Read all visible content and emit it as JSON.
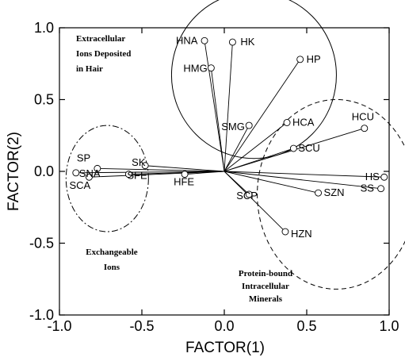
{
  "chart_data": {
    "type": "scatter",
    "xlabel": "FACTOR(1)",
    "ylabel": "FACTOR(2)",
    "xlim": [
      -1.0,
      1.0
    ],
    "ylim": [
      -1.0,
      1.0
    ],
    "xticks": [
      "-1.0",
      "-0.5",
      "0.0",
      "0.5",
      "1.0"
    ],
    "yticks": [
      "-1.0",
      "-0.5",
      "0.0",
      "0.5",
      "1.0"
    ],
    "grid": false,
    "origin": [
      0.0,
      0.0
    ],
    "points": [
      {
        "label": "HNA",
        "x": -0.12,
        "y": 0.91
      },
      {
        "label": "HK",
        "x": 0.05,
        "y": 0.9
      },
      {
        "label": "HMG",
        "x": -0.08,
        "y": 0.72
      },
      {
        "label": "HP",
        "x": 0.46,
        "y": 0.78
      },
      {
        "label": "HCA",
        "x": 0.38,
        "y": 0.34
      },
      {
        "label": "SMG",
        "x": 0.15,
        "y": 0.32
      },
      {
        "label": "SCU",
        "x": 0.42,
        "y": 0.16
      },
      {
        "label": "HCU",
        "x": 0.85,
        "y": 0.3
      },
      {
        "label": "HS",
        "x": 0.97,
        "y": -0.04
      },
      {
        "label": "SS",
        "x": 0.95,
        "y": -0.12
      },
      {
        "label": "SZN",
        "x": 0.57,
        "y": -0.15
      },
      {
        "label": "SCP",
        "x": 0.15,
        "y": -0.16
      },
      {
        "label": "HZN",
        "x": 0.37,
        "y": -0.42
      },
      {
        "label": "HFE",
        "x": -0.24,
        "y": -0.02
      },
      {
        "label": "SK",
        "x": -0.48,
        "y": 0.04
      },
      {
        "label": "SFE",
        "x": -0.58,
        "y": -0.02
      },
      {
        "label": "SP",
        "x": -0.77,
        "y": 0.02
      },
      {
        "label": "SNA",
        "x": -0.9,
        "y": -0.01
      },
      {
        "label": "SCA",
        "x": -0.82,
        "y": -0.04
      }
    ],
    "groups": [
      {
        "name": "Extracellular Ions Deposited in Hair",
        "lines": [
          "Extracellular",
          "Ions Deposited",
          "in Hair"
        ],
        "style": "solid",
        "cx": 0.18,
        "cy": 0.67,
        "rx": 0.5,
        "ry": 0.58
      },
      {
        "name": "Exchangeable Ions",
        "lines": [
          "Exchangeable",
          "Ions"
        ],
        "style": "dash-dot",
        "cx": -0.71,
        "cy": -0.05,
        "rx": 0.25,
        "ry": 0.37
      },
      {
        "name": "Protein-bound Intracellular Minerals",
        "lines": [
          "Protein-bound",
          "Intracellular",
          "Minerals"
        ],
        "style": "dashed",
        "cx": 0.68,
        "cy": -0.16,
        "rx": 0.48,
        "ry": 0.66
      }
    ]
  }
}
